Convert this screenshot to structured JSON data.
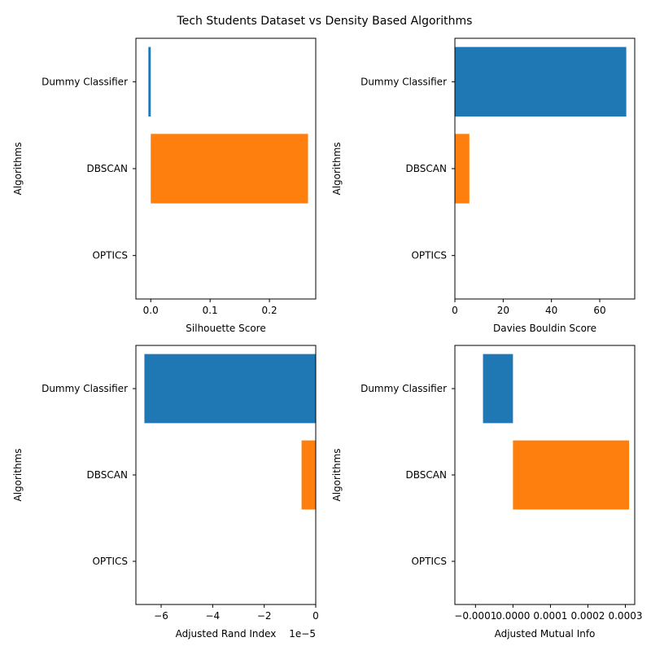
{
  "figure": {
    "title": "Tech Students Dataset vs Density Based Algorithms"
  },
  "colors": {
    "series": [
      "#1f77b4",
      "#ff7f0e",
      "#2ca02c"
    ],
    "axis": "#000000"
  },
  "chart_data": [
    {
      "type": "bar",
      "orientation": "horizontal",
      "ylabel": "Algorithms",
      "xlabel": "Silhouette Score",
      "categories": [
        "Dummy Classifier",
        "DBSCAN",
        "OPTICS"
      ],
      "values": [
        -0.004,
        0.265,
        0
      ],
      "xlim": [
        -0.025,
        0.278
      ],
      "xticks": [
        0.0,
        0.1,
        0.2
      ],
      "xtick_labels": [
        "0.0",
        "0.1",
        "0.2"
      ],
      "offset_text": ""
    },
    {
      "type": "bar",
      "orientation": "horizontal",
      "ylabel": "Algorithms",
      "xlabel": "Davies Bouldin Score",
      "categories": [
        "Dummy Classifier",
        "DBSCAN",
        "OPTICS"
      ],
      "values": [
        71.0,
        6.0,
        0
      ],
      "xlim": [
        0,
        74.5
      ],
      "xticks": [
        0,
        20,
        40,
        60
      ],
      "xtick_labels": [
        "0",
        "20",
        "40",
        "60"
      ],
      "offset_text": ""
    },
    {
      "type": "bar",
      "orientation": "horizontal",
      "ylabel": "Algorithms",
      "xlabel": "Adjusted Rand Index",
      "categories": [
        "Dummy Classifier",
        "DBSCAN",
        "OPTICS"
      ],
      "values": [
        -6.65e-05,
        -5.5e-06,
        0
      ],
      "xlim": [
        -6.98e-05,
        0
      ],
      "xticks": [
        -6e-05,
        -4e-05,
        -2e-05,
        0
      ],
      "xtick_labels": [
        "−6",
        "−4",
        "−2",
        "0"
      ],
      "offset_text": "1e−5"
    },
    {
      "type": "bar",
      "orientation": "horizontal",
      "ylabel": "Algorithms",
      "xlabel": "Adjusted Mutual Info",
      "categories": [
        "Dummy Classifier",
        "DBSCAN",
        "OPTICS"
      ],
      "values": [
        -8e-05,
        0.00031,
        0
      ],
      "xlim": [
        -0.000155,
        0.000325
      ],
      "xticks": [
        -0.0001,
        0.0,
        0.0001,
        0.0002,
        0.0003
      ],
      "xtick_labels": [
        "−0.0001",
        "0.0000",
        "0.0001",
        "0.0002",
        "0.0003"
      ],
      "offset_text": ""
    }
  ]
}
